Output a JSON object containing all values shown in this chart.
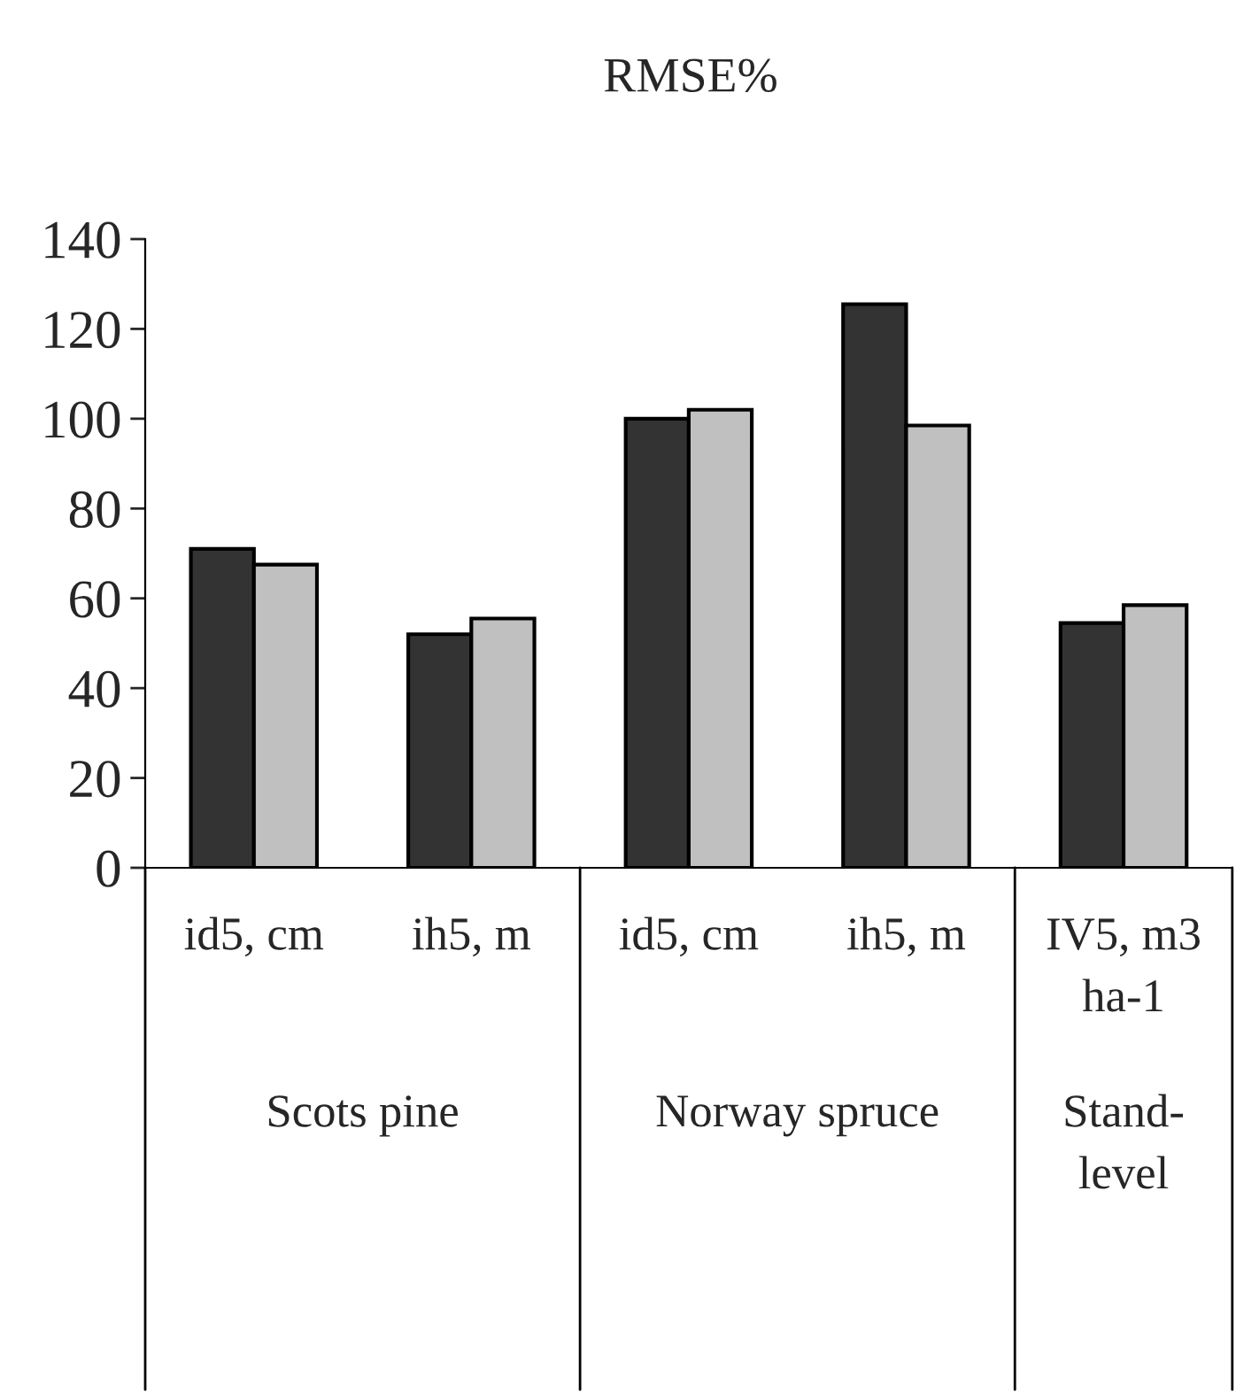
{
  "chart_data": {
    "type": "bar",
    "title": "RMSE%",
    "categories": [
      "id5, cm",
      "ih5, m",
      "id5, cm",
      "ih5, m",
      "IV5, m3 ha-1"
    ],
    "series": [
      {
        "color": "#333333",
        "values": [
          71,
          52,
          100,
          125.5,
          54.5
        ]
      },
      {
        "color": "#c0c0c0",
        "values": [
          67.5,
          55.5,
          102,
          98.5,
          58.5
        ]
      }
    ],
    "ylim": [
      0,
      140
    ],
    "yticks": [
      0,
      20,
      40,
      60,
      80,
      100,
      120,
      140
    ],
    "grid": false,
    "legend": false,
    "annotations": [
      "Scots pine",
      "Norway spruce",
      "Stand-level"
    ]
  }
}
